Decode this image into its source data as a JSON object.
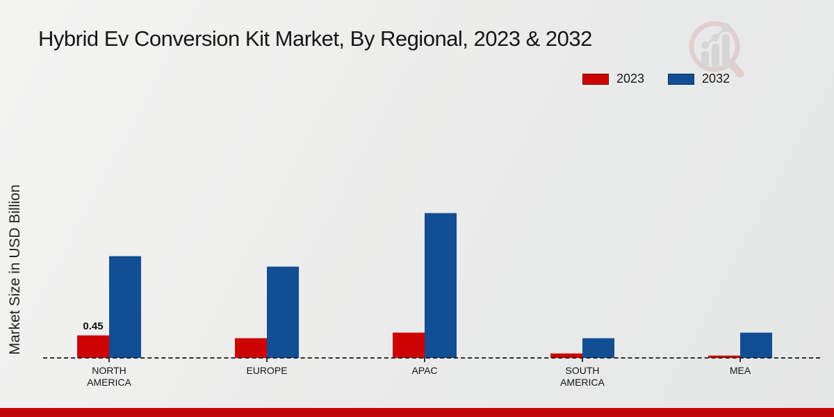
{
  "header": {
    "title": "Hybrid Ev Conversion Kit Market, By Regional, 2023 & 2032"
  },
  "chart_data": {
    "type": "bar",
    "title": "Hybrid Ev Conversion Kit Market, By Regional, 2023 & 2032",
    "xlabel": "",
    "ylabel": "Market Size in USD Billion",
    "categories": [
      "NORTH AMERICA",
      "EUROPE",
      "APAC",
      "SOUTH AMERICA",
      "MEA"
    ],
    "series": [
      {
        "name": "2023",
        "color": "#cc0404",
        "values": [
          0.45,
          0.4,
          0.5,
          0.1,
          0.05
        ]
      },
      {
        "name": "2032",
        "color": "#114e93",
        "values": [
          2.0,
          1.8,
          2.85,
          0.4,
          0.5
        ]
      }
    ],
    "data_labels": [
      {
        "series": "2023",
        "category": "NORTH AMERICA",
        "text": "0.45"
      }
    ],
    "ylim": [
      0,
      3
    ],
    "grid": "off",
    "baseline_style": "dashed",
    "legend_position": "top-right",
    "axis_values_shown": false
  },
  "logo": {
    "name": "magnifier-growth-chart-watermark"
  },
  "footer": {
    "color": "#c30707"
  }
}
